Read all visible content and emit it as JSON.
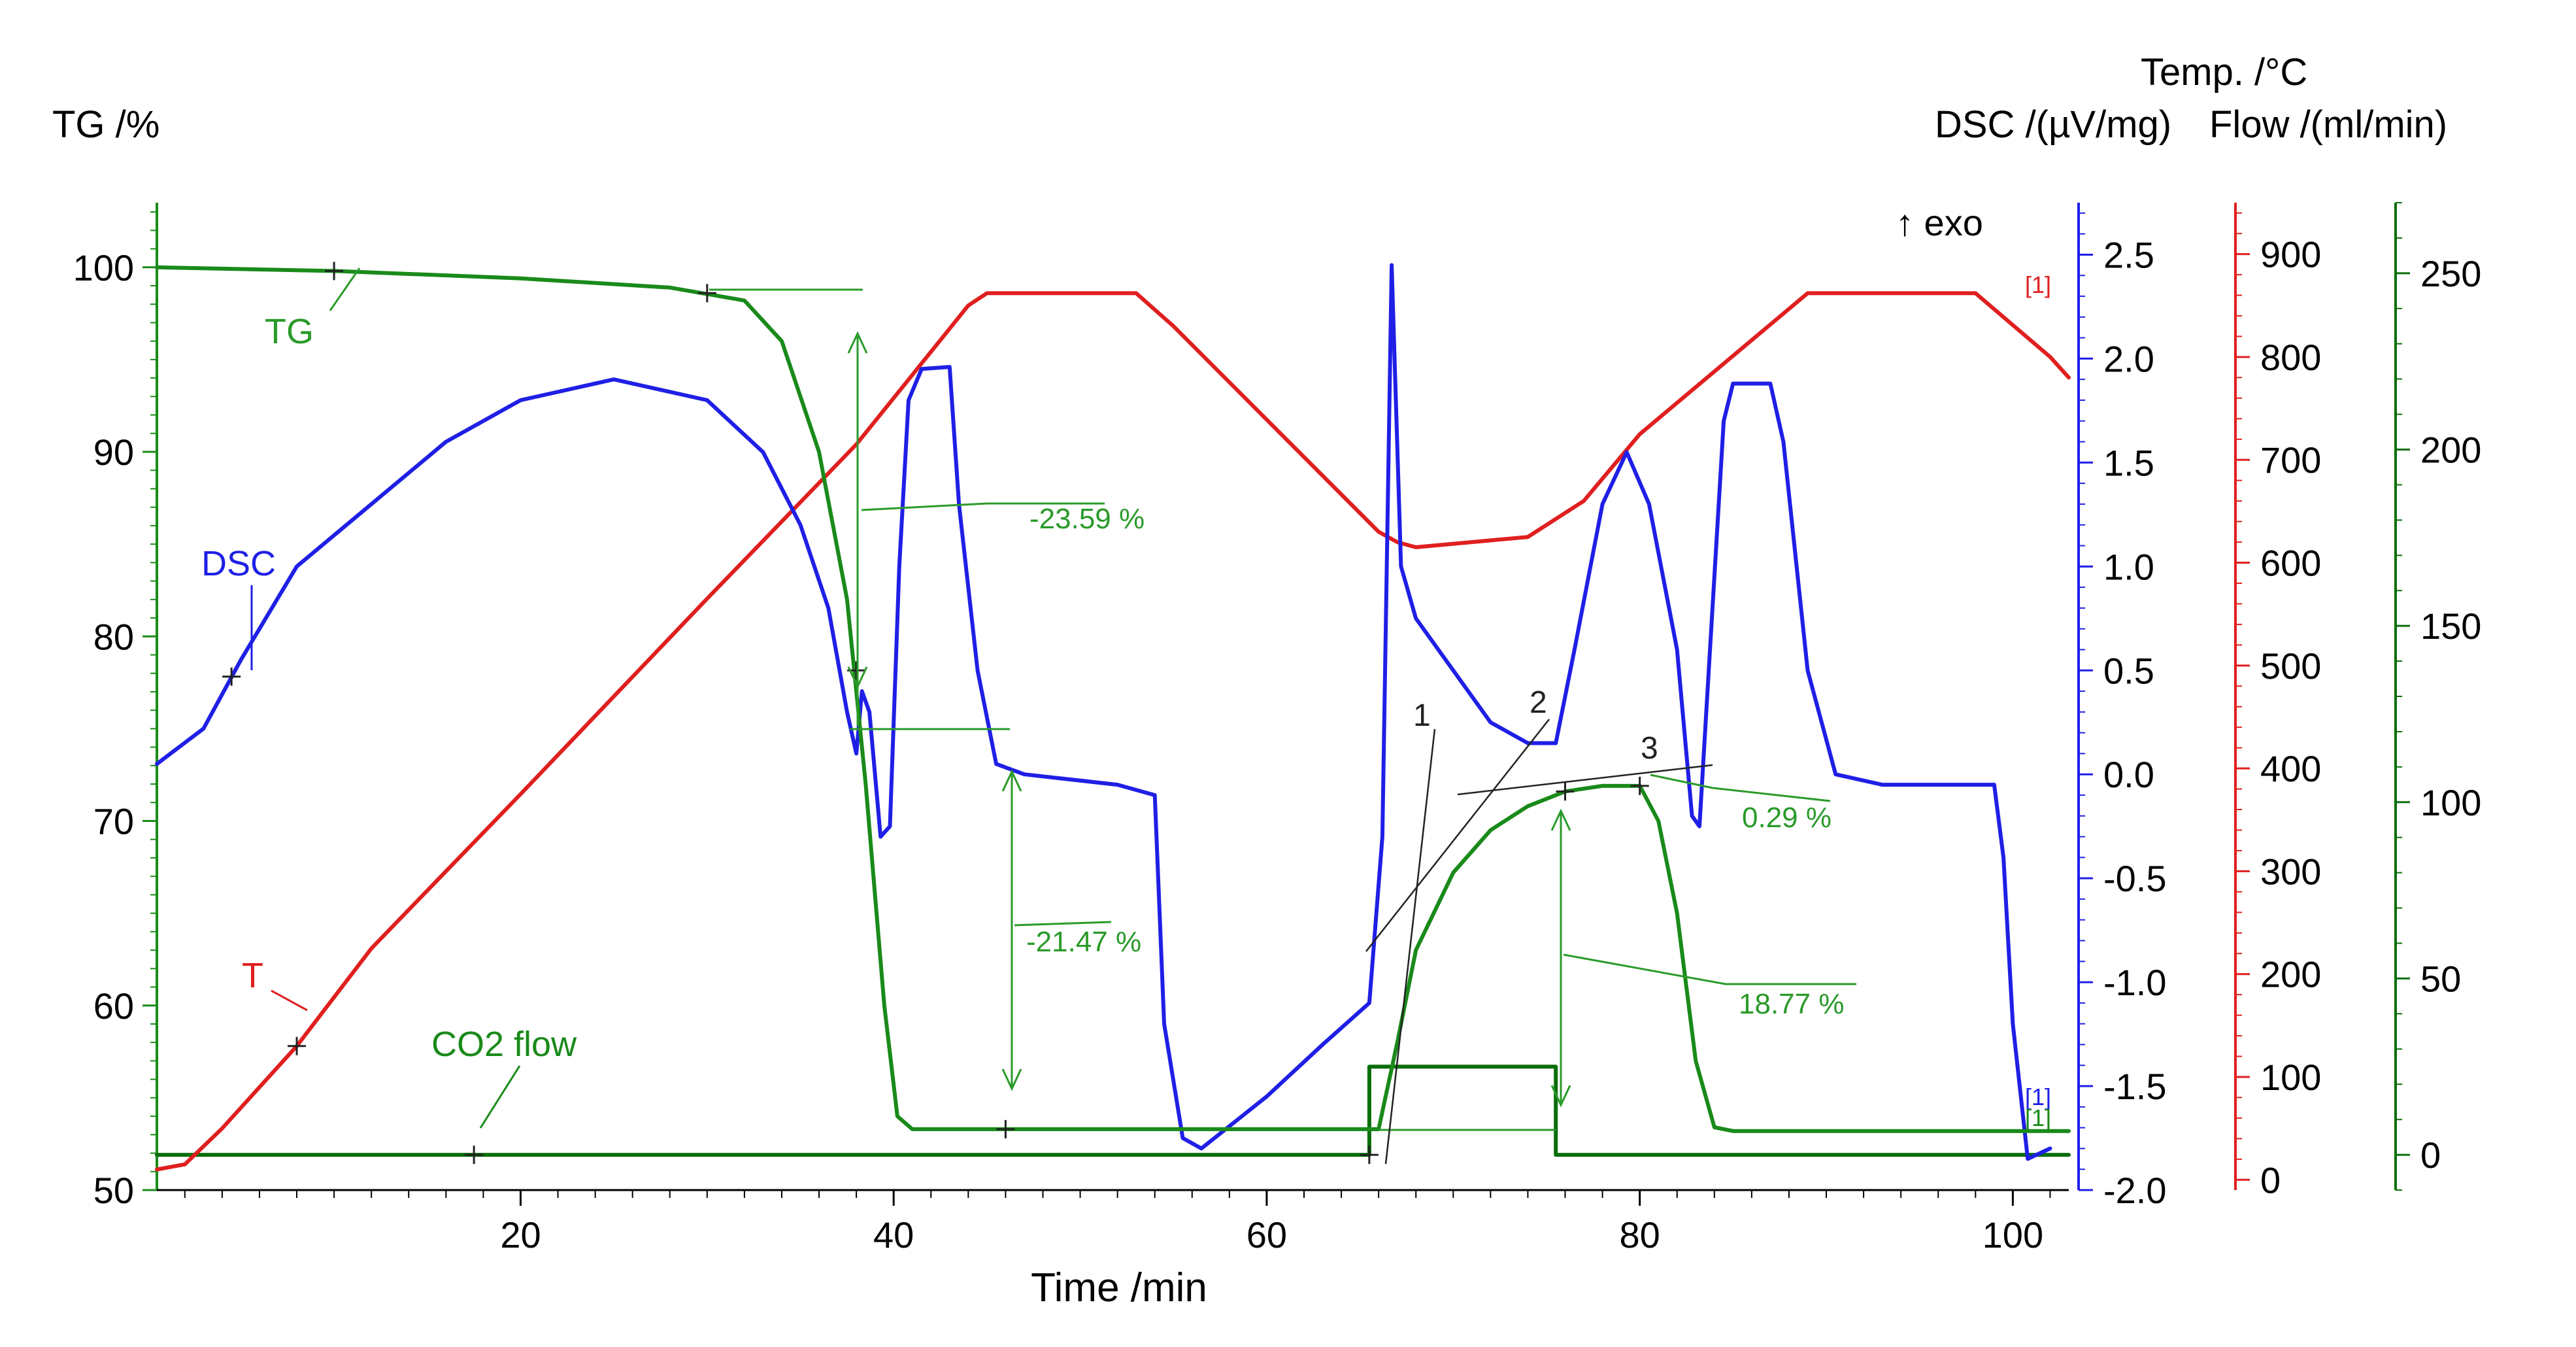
{
  "colors": {
    "tg": "#1a8a1a",
    "dsc": "#1f1fe6",
    "temp": "#e01f1f",
    "flow": "#0a6e0a",
    "axis": "#000000",
    "annot": "#2a9a2a"
  },
  "chart_data": {
    "type": "line",
    "title": "",
    "xlabel": "Time /min",
    "x_range": [
      0.5,
      103
    ],
    "x_ticks": [
      20,
      40,
      60,
      80,
      100
    ],
    "axes": {
      "tg": {
        "label": "TG /%",
        "range": [
          50,
          103.5
        ],
        "ticks": [
          50,
          60,
          70,
          80,
          90,
          100
        ],
        "tick_labels": [
          "50",
          "60",
          "70",
          "80",
          "90",
          "100"
        ]
      },
      "dsc": {
        "label": "DSC /(µV/mg)",
        "range": [
          -2.0,
          2.75
        ],
        "ticks": [
          -2.0,
          -1.5,
          -1.0,
          -0.5,
          0.0,
          0.5,
          1.0,
          1.5,
          2.0,
          2.5
        ],
        "tick_labels": [
          "-2.0",
          "-1.5",
          "-1.0",
          "-0.5",
          "0.0",
          "0.5",
          "1.0",
          "1.5",
          "2.0",
          "2.5"
        ],
        "note": "↑ exo"
      },
      "temp": {
        "label": "Temp. /°C",
        "range": [
          -10,
          950
        ],
        "ticks": [
          0,
          100,
          200,
          300,
          400,
          500,
          600,
          700,
          800,
          900
        ],
        "tick_labels": [
          "0",
          "100",
          "200",
          "300",
          "400",
          "500",
          "600",
          "700",
          "800",
          "900"
        ]
      },
      "flow": {
        "label": "Flow /(ml/min)",
        "range": [
          -10,
          270
        ],
        "ticks": [
          0,
          50,
          100,
          150,
          200,
          250
        ],
        "tick_labels": [
          "0",
          "50",
          "100",
          "150",
          "200",
          "250"
        ]
      }
    },
    "series": [
      {
        "name": "TG",
        "axis": "tg",
        "label": "TG",
        "points": [
          [
            0.5,
            100
          ],
          [
            10,
            99.8
          ],
          [
            20,
            99.4
          ],
          [
            28,
            98.9
          ],
          [
            32,
            98.2
          ],
          [
            34,
            96
          ],
          [
            36,
            90
          ],
          [
            37.5,
            82
          ],
          [
            38.5,
            72
          ],
          [
            39.5,
            60
          ],
          [
            40.2,
            54
          ],
          [
            41,
            53.3
          ],
          [
            66,
            53.3
          ],
          [
            67,
            58
          ],
          [
            68,
            63
          ],
          [
            70,
            67.2
          ],
          [
            72,
            69.5
          ],
          [
            74,
            70.8
          ],
          [
            76,
            71.6
          ],
          [
            78,
            71.9
          ],
          [
            80,
            71.9
          ],
          [
            81,
            70
          ],
          [
            82,
            65
          ],
          [
            83,
            57
          ],
          [
            84,
            53.4
          ],
          [
            85,
            53.2
          ],
          [
            103,
            53.2
          ]
        ]
      },
      {
        "name": "DSC",
        "axis": "dsc",
        "label": "DSC",
        "points": [
          [
            0.5,
            0.05
          ],
          [
            3,
            0.22
          ],
          [
            5,
            0.55
          ],
          [
            8,
            1.0
          ],
          [
            12,
            1.3
          ],
          [
            16,
            1.6
          ],
          [
            20,
            1.8
          ],
          [
            25,
            1.9
          ],
          [
            30,
            1.8
          ],
          [
            33,
            1.55
          ],
          [
            35,
            1.2
          ],
          [
            36.5,
            0.8
          ],
          [
            37.5,
            0.3
          ],
          [
            38,
            0.1
          ],
          [
            38.3,
            0.4
          ],
          [
            38.7,
            0.3
          ],
          [
            39.3,
            -0.3
          ],
          [
            39.8,
            -0.25
          ],
          [
            40.3,
            1.0
          ],
          [
            40.8,
            1.8
          ],
          [
            41.5,
            1.95
          ],
          [
            43,
            1.96
          ],
          [
            43.5,
            1.3
          ],
          [
            44.5,
            0.5
          ],
          [
            45.5,
            0.05
          ],
          [
            47,
            0.0
          ],
          [
            52,
            -0.05
          ],
          [
            54,
            -0.1
          ],
          [
            54.5,
            -1.2
          ],
          [
            55.5,
            -1.75
          ],
          [
            56.5,
            -1.8
          ],
          [
            60,
            -1.55
          ],
          [
            63,
            -1.3
          ],
          [
            65.5,
            -1.1
          ],
          [
            66.2,
            -0.3
          ],
          [
            66.7,
            2.45
          ],
          [
            67.2,
            1.0
          ],
          [
            68,
            0.75
          ],
          [
            70,
            0.5
          ],
          [
            72,
            0.25
          ],
          [
            74,
            0.15
          ],
          [
            75.5,
            0.15
          ],
          [
            76.5,
            0.6
          ],
          [
            78,
            1.3
          ],
          [
            79.3,
            1.55
          ],
          [
            80.5,
            1.3
          ],
          [
            82,
            0.6
          ],
          [
            82.8,
            -0.2
          ],
          [
            83.2,
            -0.25
          ],
          [
            83.7,
            0.5
          ],
          [
            84.5,
            1.7
          ],
          [
            85,
            1.88
          ],
          [
            87,
            1.88
          ],
          [
            87.7,
            1.6
          ],
          [
            89,
            0.5
          ],
          [
            90.5,
            0.0
          ],
          [
            93,
            -0.05
          ],
          [
            99,
            -0.05
          ],
          [
            99.5,
            -0.4
          ],
          [
            100,
            -1.2
          ],
          [
            100.8,
            -1.85
          ],
          [
            102,
            -1.8
          ]
        ]
      },
      {
        "name": "T",
        "axis": "temp",
        "label": "T",
        "points": [
          [
            0.5,
            10
          ],
          [
            2,
            15
          ],
          [
            4,
            50
          ],
          [
            8,
            130
          ],
          [
            12,
            225
          ],
          [
            20,
            375
          ],
          [
            30,
            565
          ],
          [
            38,
            715
          ],
          [
            44,
            850
          ],
          [
            45,
            862
          ],
          [
            53,
            862
          ],
          [
            55,
            830
          ],
          [
            66,
            630
          ],
          [
            67,
            620
          ],
          [
            68,
            615
          ],
          [
            74,
            625
          ],
          [
            77,
            660
          ],
          [
            80,
            725
          ],
          [
            89,
            862
          ],
          [
            98,
            862
          ],
          [
            102,
            800
          ],
          [
            103,
            780
          ]
        ]
      },
      {
        "name": "CO2 flow",
        "axis": "flow",
        "label": "CO2 flow",
        "points": [
          [
            0.5,
            0
          ],
          [
            65.5,
            0
          ],
          [
            65.5,
            25
          ],
          [
            75.5,
            25
          ],
          [
            75.5,
            0
          ],
          [
            103,
            0
          ]
        ]
      }
    ],
    "annotations": [
      {
        "id": "mass-step-1",
        "label": "-23.59 %",
        "color": "annot"
      },
      {
        "id": "mass-step-2",
        "label": "-21.47 %",
        "color": "annot"
      },
      {
        "id": "mass-step-3",
        "label": "18.77 %",
        "color": "annot"
      },
      {
        "id": "mass-step-4",
        "label": "0.29 %",
        "color": "annot"
      },
      {
        "id": "tangent-1",
        "label": "1"
      },
      {
        "id": "tangent-2",
        "label": "2"
      },
      {
        "id": "tangent-3",
        "label": "3"
      },
      {
        "id": "seg-marker-temp",
        "label": "[1]"
      },
      {
        "id": "seg-marker-dsc",
        "label": "[1]"
      },
      {
        "id": "seg-marker-tg",
        "label": "[1]"
      }
    ]
  }
}
